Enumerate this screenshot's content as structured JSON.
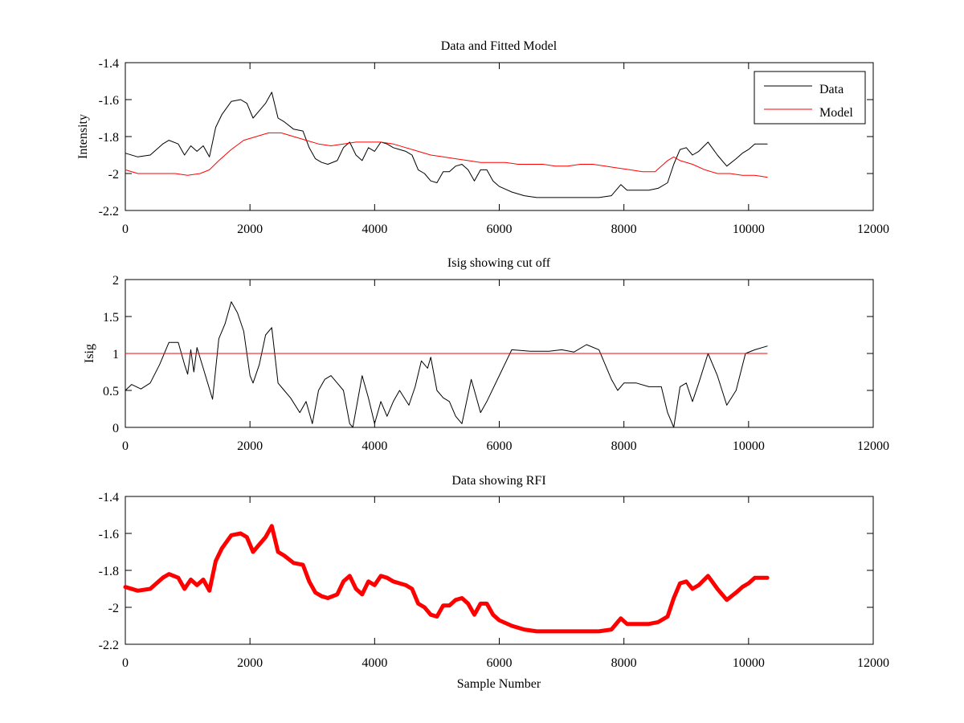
{
  "chart_data": [
    {
      "type": "line",
      "title": "Data and Fitted Model",
      "xlabel": "",
      "ylabel": "Intensity",
      "xlim": [
        0,
        12000
      ],
      "ylim": [
        -2.2,
        -1.4
      ],
      "xticks": [
        "0",
        "2000",
        "4000",
        "6000",
        "8000",
        "10000",
        "12000"
      ],
      "yticks": [
        "-1.4",
        "-1.6",
        "-1.8",
        "-2",
        "-2.2"
      ],
      "legend": "top-right",
      "series": [
        {
          "name": "Data",
          "color": "#000000",
          "x": [
            0,
            200,
            400,
            600,
            700,
            850,
            950,
            1050,
            1150,
            1250,
            1350,
            1450,
            1550,
            1700,
            1850,
            1950,
            2050,
            2150,
            2250,
            2350,
            2450,
            2550,
            2700,
            2850,
            2950,
            3050,
            3150,
            3250,
            3400,
            3500,
            3600,
            3700,
            3800,
            3900,
            4000,
            4100,
            4200,
            4300,
            4400,
            4500,
            4600,
            4700,
            4800,
            4900,
            5000,
            5100,
            5200,
            5300,
            5400,
            5500,
            5600,
            5700,
            5800,
            5900,
            6000,
            6200,
            6400,
            6600,
            6800,
            7000,
            7200,
            7400,
            7600,
            7800,
            7950,
            8050,
            8200,
            8400,
            8550,
            8700,
            8800,
            8900,
            9000,
            9100,
            9200,
            9350,
            9500,
            9650,
            9800,
            9900,
            10000,
            10100,
            10200,
            10300
          ],
          "values": [
            -1.89,
            -1.91,
            -1.9,
            -1.84,
            -1.82,
            -1.84,
            -1.9,
            -1.85,
            -1.88,
            -1.85,
            -1.91,
            -1.75,
            -1.68,
            -1.61,
            -1.6,
            -1.62,
            -1.7,
            -1.66,
            -1.62,
            -1.56,
            -1.7,
            -1.72,
            -1.76,
            -1.77,
            -1.86,
            -1.92,
            -1.94,
            -1.95,
            -1.93,
            -1.86,
            -1.83,
            -1.9,
            -1.93,
            -1.86,
            -1.88,
            -1.83,
            -1.84,
            -1.86,
            -1.87,
            -1.88,
            -1.9,
            -1.98,
            -2.0,
            -2.04,
            -2.05,
            -1.99,
            -1.99,
            -1.96,
            -1.95,
            -1.98,
            -2.04,
            -1.98,
            -1.98,
            -2.04,
            -2.07,
            -2.1,
            -2.12,
            -2.13,
            -2.13,
            -2.13,
            -2.13,
            -2.13,
            -2.13,
            -2.12,
            -2.06,
            -2.09,
            -2.09,
            -2.09,
            -2.08,
            -2.05,
            -1.95,
            -1.87,
            -1.86,
            -1.9,
            -1.88,
            -1.83,
            -1.9,
            -1.96,
            -1.92,
            -1.89,
            -1.87,
            -1.84,
            -1.84,
            -1.84
          ]
        },
        {
          "name": "Model",
          "color": "#ff0000",
          "x": [
            0,
            200,
            400,
            600,
            800,
            1000,
            1200,
            1350,
            1500,
            1700,
            1900,
            2100,
            2300,
            2500,
            2700,
            2900,
            3100,
            3300,
            3500,
            3700,
            3900,
            4100,
            4300,
            4500,
            4700,
            4900,
            5100,
            5300,
            5500,
            5700,
            5900,
            6100,
            6300,
            6500,
            6700,
            6900,
            7100,
            7300,
            7500,
            7700,
            7900,
            8100,
            8300,
            8500,
            8700,
            8800,
            8900,
            9100,
            9300,
            9500,
            9700,
            9900,
            10100,
            10300
          ],
          "values": [
            -1.98,
            -2.0,
            -2.0,
            -2.0,
            -2.0,
            -2.01,
            -2.0,
            -1.98,
            -1.93,
            -1.87,
            -1.82,
            -1.8,
            -1.78,
            -1.78,
            -1.8,
            -1.82,
            -1.84,
            -1.85,
            -1.84,
            -1.83,
            -1.83,
            -1.83,
            -1.84,
            -1.86,
            -1.88,
            -1.9,
            -1.91,
            -1.92,
            -1.93,
            -1.94,
            -1.94,
            -1.94,
            -1.95,
            -1.95,
            -1.95,
            -1.96,
            -1.96,
            -1.95,
            -1.95,
            -1.96,
            -1.97,
            -1.98,
            -1.99,
            -1.99,
            -1.93,
            -1.91,
            -1.93,
            -1.95,
            -1.98,
            -2.0,
            -2.0,
            -2.01,
            -2.01,
            -2.02
          ]
        }
      ]
    },
    {
      "type": "line",
      "title": "Isig showing cut off",
      "xlabel": "",
      "ylabel": "Isig",
      "xlim": [
        0,
        12000
      ],
      "ylim": [
        0,
        2
      ],
      "xticks": [
        "0",
        "2000",
        "4000",
        "6000",
        "8000",
        "10000",
        "12000"
      ],
      "yticks": [
        "2",
        "1.5",
        "1",
        "0.5",
        "0"
      ],
      "series": [
        {
          "color": "#000000",
          "x": [
            0,
            100,
            250,
            400,
            550,
            700,
            850,
            950,
            1000,
            1050,
            1100,
            1150,
            1250,
            1400,
            1500,
            1600,
            1700,
            1800,
            1900,
            2000,
            2050,
            2150,
            2250,
            2350,
            2450,
            2550,
            2650,
            2800,
            2900,
            3000,
            3100,
            3200,
            3300,
            3400,
            3500,
            3600,
            3650,
            3800,
            3900,
            4000,
            4100,
            4200,
            4300,
            4400,
            4550,
            4650,
            4750,
            4850,
            4900,
            5000,
            5100,
            5200,
            5300,
            5400,
            5550,
            5600,
            5700,
            5800,
            6000,
            6200,
            6500,
            6800,
            7000,
            7200,
            7400,
            7600,
            7800,
            7900,
            8000,
            8200,
            8400,
            8600,
            8700,
            8800,
            8900,
            9000,
            9100,
            9200,
            9350,
            9500,
            9650,
            9800,
            9950,
            10100,
            10300
          ],
          "values": [
            0.5,
            0.58,
            0.52,
            0.6,
            0.85,
            1.15,
            1.15,
            0.85,
            0.72,
            1.05,
            0.75,
            1.08,
            0.8,
            0.38,
            1.2,
            1.4,
            1.7,
            1.55,
            1.3,
            0.7,
            0.6,
            0.85,
            1.25,
            1.35,
            0.6,
            0.5,
            0.4,
            0.2,
            0.35,
            0.05,
            0.5,
            0.65,
            0.7,
            0.6,
            0.5,
            0.05,
            0.0,
            0.7,
            0.4,
            0.05,
            0.35,
            0.15,
            0.35,
            0.5,
            0.3,
            0.55,
            0.9,
            0.8,
            0.95,
            0.5,
            0.4,
            0.35,
            0.15,
            0.05,
            0.65,
            0.5,
            0.2,
            0.35,
            0.7,
            1.05,
            1.03,
            1.03,
            1.05,
            1.02,
            1.12,
            1.05,
            0.65,
            0.5,
            0.6,
            0.6,
            0.55,
            0.55,
            0.2,
            0.0,
            0.55,
            0.6,
            0.35,
            0.6,
            1.0,
            0.7,
            0.3,
            0.5,
            1.0,
            1.05,
            1.1
          ]
        },
        {
          "color": "#ff0000",
          "x": [
            0,
            10300
          ],
          "values": [
            1,
            1
          ]
        }
      ]
    },
    {
      "type": "line",
      "title": "Data showing RFI",
      "xlabel": "Sample Number",
      "ylabel": "",
      "xlim": [
        0,
        12000
      ],
      "ylim": [
        -2.2,
        -1.4
      ],
      "xticks": [
        "0",
        "2000",
        "4000",
        "6000",
        "8000",
        "10000",
        "12000"
      ],
      "yticks": [
        "-1.4",
        "-1.6",
        "-1.8",
        "-2",
        "-2.2"
      ],
      "series": [
        {
          "color": "#ff0000",
          "x": [
            0,
            200,
            400,
            600,
            700,
            850,
            950,
            1050,
            1150,
            1250,
            1350,
            1450,
            1550,
            1700,
            1850,
            1950,
            2050,
            2150,
            2250,
            2350,
            2450,
            2550,
            2700,
            2850,
            2950,
            3050,
            3150,
            3250,
            3400,
            3500,
            3600,
            3700,
            3800,
            3900,
            4000,
            4100,
            4200,
            4300,
            4400,
            4500,
            4600,
            4700,
            4800,
            4900,
            5000,
            5100,
            5200,
            5300,
            5400,
            5500,
            5600,
            5700,
            5800,
            5900,
            6000,
            6200,
            6400,
            6600,
            6800,
            7000,
            7200,
            7400,
            7600,
            7800,
            7950,
            8050,
            8200,
            8400,
            8550,
            8700,
            8800,
            8900,
            9000,
            9100,
            9200,
            9350,
            9500,
            9650,
            9800,
            9900,
            10000,
            10100,
            10200,
            10300
          ],
          "values": [
            -1.89,
            -1.91,
            -1.9,
            -1.84,
            -1.82,
            -1.84,
            -1.9,
            -1.85,
            -1.88,
            -1.85,
            -1.91,
            -1.75,
            -1.68,
            -1.61,
            -1.6,
            -1.62,
            -1.7,
            -1.66,
            -1.62,
            -1.56,
            -1.7,
            -1.72,
            -1.76,
            -1.77,
            -1.86,
            -1.92,
            -1.94,
            -1.95,
            -1.93,
            -1.86,
            -1.83,
            -1.9,
            -1.93,
            -1.86,
            -1.88,
            -1.83,
            -1.84,
            -1.86,
            -1.87,
            -1.88,
            -1.9,
            -1.98,
            -2.0,
            -2.04,
            -2.05,
            -1.99,
            -1.99,
            -1.96,
            -1.95,
            -1.98,
            -2.04,
            -1.98,
            -1.98,
            -2.04,
            -2.07,
            -2.1,
            -2.12,
            -2.13,
            -2.13,
            -2.13,
            -2.13,
            -2.13,
            -2.13,
            -2.12,
            -2.06,
            -2.09,
            -2.09,
            -2.09,
            -2.08,
            -2.05,
            -1.95,
            -1.87,
            -1.86,
            -1.9,
            -1.88,
            -1.83,
            -1.9,
            -1.96,
            -1.92,
            -1.89,
            -1.87,
            -1.84,
            -1.84,
            -1.84
          ]
        }
      ]
    }
  ]
}
